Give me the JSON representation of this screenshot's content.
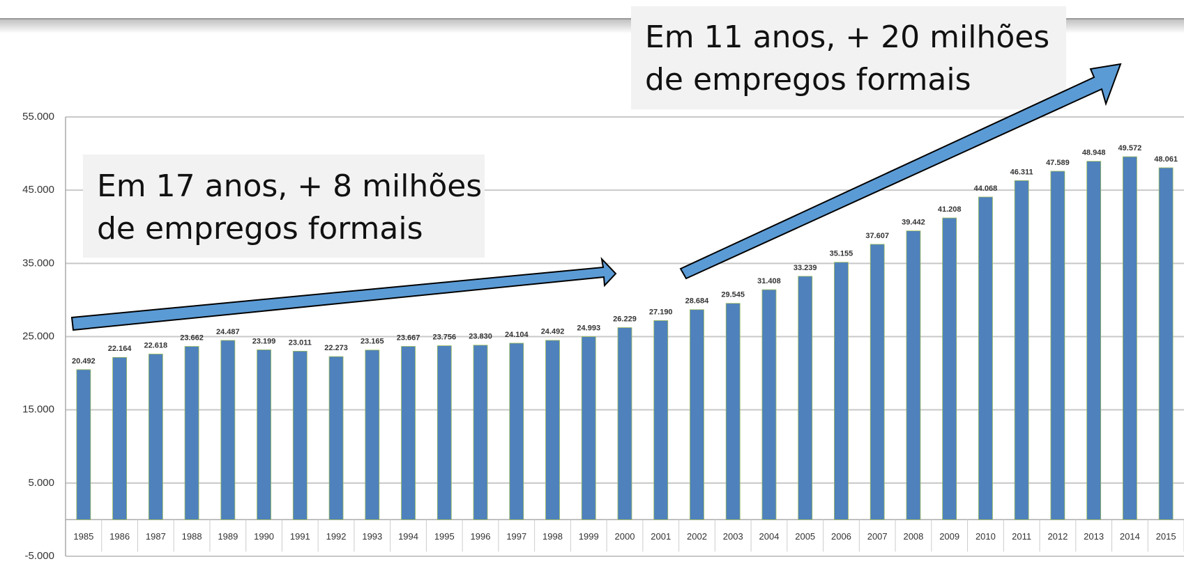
{
  "chart_data": {
    "type": "bar",
    "categories": [
      "1985",
      "1986",
      "1987",
      "1988",
      "1989",
      "1990",
      "1991",
      "1992",
      "1993",
      "1994",
      "1995",
      "1996",
      "1997",
      "1998",
      "1999",
      "2000",
      "2001",
      "2002",
      "2003",
      "2004",
      "2005",
      "2006",
      "2007",
      "2008",
      "2009",
      "2010",
      "2011",
      "2012",
      "2013",
      "2014",
      "2015"
    ],
    "values": [
      20492,
      22164,
      22618,
      23662,
      24487,
      23199,
      23011,
      22273,
      23165,
      23667,
      23756,
      23830,
      24104,
      24492,
      24993,
      26229,
      27190,
      28684,
      29545,
      31408,
      33239,
      35155,
      37607,
      39442,
      41208,
      44068,
      46311,
      47589,
      48948,
      49572,
      48061
    ],
    "value_labels": [
      "20.492",
      "22.164",
      "22.618",
      "23.662",
      "24.487",
      "23.199",
      "23.011",
      "22.273",
      "23.165",
      "23.667",
      "23.756",
      "23.830",
      "24.104",
      "24.492",
      "24.993",
      "26.229",
      "27.190",
      "28.684",
      "29.545",
      "31.408",
      "33.239",
      "35.155",
      "37.607",
      "39.442",
      "41.208",
      "44.068",
      "46.311",
      "47.589",
      "48.948",
      "49.572",
      "48.061"
    ],
    "color": "#4f81bd",
    "ylim": [
      -5000,
      55000
    ],
    "yticks": [
      {
        "value": -5000,
        "label": "-5.000"
      },
      {
        "value": 5000,
        "label": "5.000"
      },
      {
        "value": 15000,
        "label": "15.000"
      },
      {
        "value": 25000,
        "label": "25.000"
      },
      {
        "value": 35000,
        "label": "35.000"
      },
      {
        "value": 45000,
        "label": "45.000"
      },
      {
        "value": 55000,
        "label": "55.000"
      }
    ],
    "grid": true,
    "annotations": [
      [
        "Em 17 anos, + 8 milhões",
        "de empregos formais"
      ],
      [
        "Em 11 anos, + 20 milhões",
        "de empregos formais"
      ]
    ]
  }
}
